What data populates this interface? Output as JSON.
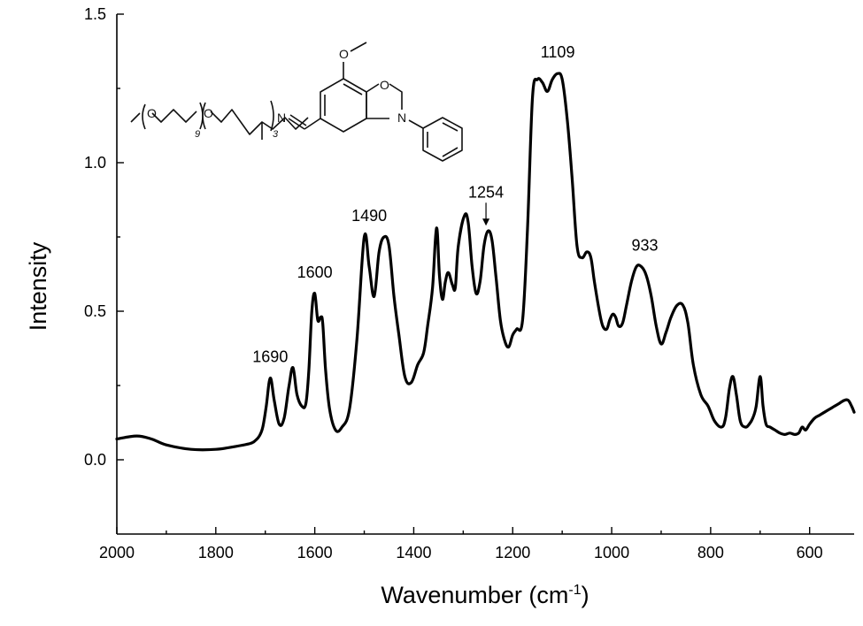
{
  "chart_data": {
    "type": "line",
    "xlabel": "Wavenumber (cm",
    "xlabel_sup": "-1",
    "xlabel_close": ")",
    "ylabel": "Intensity",
    "xlim": [
      2000,
      510
    ],
    "ylim": [
      -0.25,
      1.5
    ],
    "x_ticks": [
      2000,
      1800,
      1600,
      1400,
      1200,
      1000,
      800,
      600
    ],
    "y_ticks": [
      0.0,
      0.5,
      1.0,
      1.5
    ],
    "y_tick_labels": [
      "0.0",
      "0.5",
      "1.0",
      "1.5"
    ],
    "grid": false,
    "series": [
      {
        "color": "#000000",
        "x": [
          2000,
          1960,
          1930,
          1900,
          1850,
          1800,
          1760,
          1730,
          1720,
          1712,
          1705,
          1698,
          1690,
          1682,
          1672,
          1662,
          1652,
          1644,
          1636,
          1626,
          1618,
          1612,
          1606,
          1600,
          1594,
          1588,
          1584,
          1578,
          1570,
          1558,
          1545,
          1530,
          1515,
          1500,
          1490,
          1480,
          1470,
          1460,
          1450,
          1440,
          1430,
          1418,
          1405,
          1392,
          1380,
          1372,
          1362,
          1354,
          1348,
          1342,
          1336,
          1330,
          1322,
          1316,
          1310,
          1298,
          1290,
          1282,
          1274,
          1266,
          1258,
          1250,
          1242,
          1234,
          1225,
          1216,
          1208,
          1200,
          1192,
          1180,
          1170,
          1160,
          1150,
          1140,
          1130,
          1120,
          1109,
          1100,
          1090,
          1080,
          1070,
          1060,
          1050,
          1042,
          1035,
          1025,
          1018,
          1010,
          1004,
          998,
          992,
          986,
          978,
          970,
          960,
          950,
          940,
          930,
          920,
          910,
          900,
          890,
          880,
          868,
          856,
          846,
          835,
          820,
          805,
          792,
          778,
          770,
          762,
          755,
          748,
          740,
          730,
          722,
          715,
          708,
          700,
          694,
          688,
          680,
          670,
          660,
          650,
          640,
          630,
          622,
          615,
          608,
          600,
          590,
          580,
          570,
          560,
          550,
          540,
          530,
          522,
          515,
          510
        ],
        "y": [
          0.07,
          0.08,
          0.07,
          0.05,
          0.035,
          0.035,
          0.045,
          0.055,
          0.065,
          0.08,
          0.11,
          0.18,
          0.275,
          0.2,
          0.12,
          0.14,
          0.25,
          0.31,
          0.22,
          0.18,
          0.19,
          0.3,
          0.5,
          0.56,
          0.47,
          0.48,
          0.46,
          0.3,
          0.17,
          0.1,
          0.11,
          0.17,
          0.4,
          0.75,
          0.65,
          0.55,
          0.7,
          0.75,
          0.72,
          0.55,
          0.42,
          0.28,
          0.26,
          0.32,
          0.36,
          0.45,
          0.58,
          0.78,
          0.62,
          0.54,
          0.6,
          0.63,
          0.59,
          0.58,
          0.72,
          0.82,
          0.8,
          0.65,
          0.56,
          0.6,
          0.72,
          0.77,
          0.74,
          0.62,
          0.47,
          0.4,
          0.38,
          0.42,
          0.44,
          0.47,
          0.78,
          1.22,
          1.28,
          1.27,
          1.24,
          1.28,
          1.3,
          1.28,
          1.15,
          0.95,
          0.72,
          0.68,
          0.7,
          0.68,
          0.6,
          0.5,
          0.45,
          0.44,
          0.47,
          0.49,
          0.48,
          0.45,
          0.46,
          0.52,
          0.6,
          0.65,
          0.65,
          0.62,
          0.55,
          0.45,
          0.39,
          0.43,
          0.48,
          0.52,
          0.52,
          0.46,
          0.32,
          0.22,
          0.18,
          0.13,
          0.11,
          0.14,
          0.24,
          0.28,
          0.22,
          0.13,
          0.11,
          0.12,
          0.14,
          0.18,
          0.28,
          0.18,
          0.12,
          0.11,
          0.1,
          0.09,
          0.085,
          0.09,
          0.085,
          0.09,
          0.11,
          0.1,
          0.12,
          0.14,
          0.15,
          0.16,
          0.17,
          0.18,
          0.19,
          0.2,
          0.2,
          0.18,
          0.16
        ]
      }
    ],
    "annotations": [
      {
        "text": "1690",
        "x": 1690,
        "y": 0.275
      },
      {
        "text": "1600",
        "x": 1600,
        "y": 0.56
      },
      {
        "text": "1490",
        "x": 1490,
        "y": 0.75
      },
      {
        "text": "1254",
        "x": 1254,
        "y": 0.77,
        "arrow": true
      },
      {
        "text": "1109",
        "x": 1109,
        "y": 1.3
      },
      {
        "text": "933",
        "x": 933,
        "y": 0.65
      }
    ]
  },
  "structure_inset": {
    "atom_labels": {
      "o1": "O",
      "o2": "O",
      "n1": "N",
      "sub_9": "9",
      "sub_3": "3",
      "o_methoxy": "O",
      "o_ring": "O",
      "n_ring": "N"
    }
  }
}
